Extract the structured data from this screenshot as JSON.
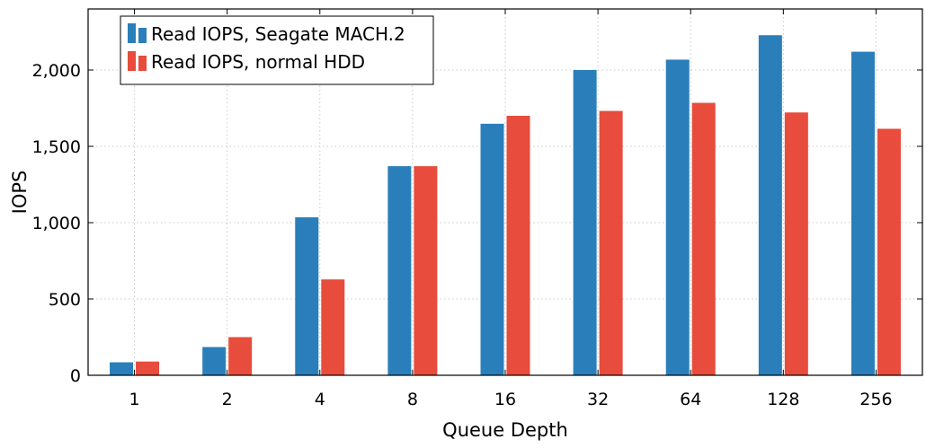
{
  "chart_data": {
    "type": "bar",
    "title": "",
    "xlabel": "Queue Depth",
    "ylabel": "IOPS",
    "categories": [
      "1",
      "2",
      "4",
      "8",
      "16",
      "32",
      "64",
      "128",
      "256"
    ],
    "series": [
      {
        "name": "Read IOPS, Seagate MACH.2",
        "color": "#2a7fba",
        "values": [
          85,
          185,
          1035,
          1370,
          1648,
          2000,
          2068,
          2228,
          2120
        ]
      },
      {
        "name": "Read IOPS, normal HDD",
        "color": "#e74c3c",
        "values": [
          90,
          250,
          628,
          1370,
          1700,
          1732,
          1785,
          1722,
          1615
        ]
      }
    ],
    "ylim": [
      0,
      2400
    ],
    "yticks": [
      0,
      500,
      1000,
      1500,
      2000
    ],
    "ytick_labels": [
      "0",
      "500",
      "1,000",
      "1,500",
      "2,000"
    ],
    "grid": true,
    "legend_position": "top-left"
  }
}
